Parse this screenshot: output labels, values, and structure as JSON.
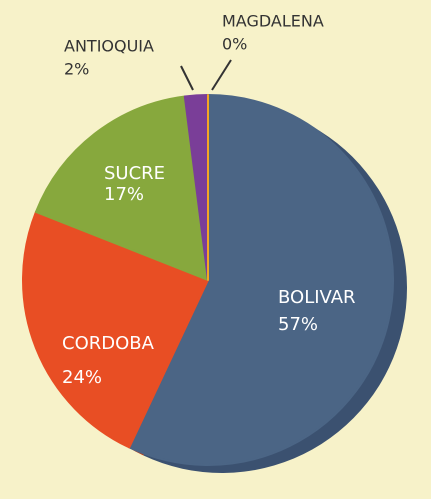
{
  "chart_data": {
    "type": "pie",
    "categories": [
      "BOLIVAR",
      "CORDOBA",
      "SUCRE",
      "ANTIOQUIA",
      "MAGDALENA"
    ],
    "values": [
      57,
      24,
      17,
      2,
      0
    ],
    "value_labels": [
      "57%",
      "24%",
      "17%",
      "2%",
      "0%"
    ],
    "colors": [
      "#4b6585",
      "#e84e24",
      "#87a83d",
      "#7a3e98",
      "#f5a623"
    ],
    "shade_colors": [
      "#3b5170",
      "#b83a18",
      "#6a8a2c",
      "#5d2c78",
      "#c98410"
    ]
  }
}
